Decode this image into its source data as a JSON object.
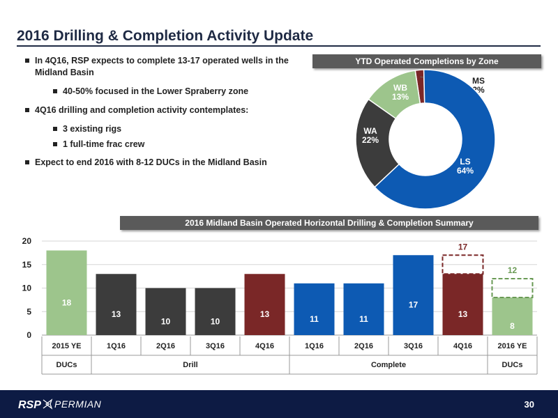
{
  "slide": {
    "title": "2016 Drilling & Completion Activity Update",
    "page_number": "30"
  },
  "bullets": [
    {
      "text": "In 4Q16, RSP expects to complete 13-17 operated wells in the Midland Basin",
      "level": 1
    },
    {
      "text": "40-50% focused in the Lower Spraberry zone",
      "level": 2
    },
    {
      "text": "4Q16 drilling and completion activity contemplates:",
      "level": 1
    },
    {
      "text": "3 existing rigs",
      "level": 2
    },
    {
      "text": "1 full-time frac crew",
      "level": 2
    },
    {
      "text": "Expect to end 2016 with 8-12 DUCs in the Midland Basin",
      "level": 1
    }
  ],
  "logo": {
    "text_left": "RSP",
    "text_right": "PERMIAN"
  },
  "chart_data": [
    {
      "type": "pie",
      "title": "YTD Operated Completions by Zone",
      "slices": [
        {
          "label": "LS",
          "pct_label": "64%",
          "value": 64,
          "color": "#0d5ab3"
        },
        {
          "label": "WA",
          "pct_label": "22%",
          "value": 22,
          "color": "#3c3c3c"
        },
        {
          "label": "WB",
          "pct_label": "13%",
          "value": 13,
          "color": "#9dc58c"
        },
        {
          "label": "MS",
          "pct_label": "2%",
          "value": 2,
          "color": "#7a2727"
        }
      ]
    },
    {
      "type": "bar",
      "title": "2016 Midland Basin Operated Horizontal Drilling & Completion Summary",
      "categories": [
        "2015 YE",
        "1Q16",
        "2Q16",
        "3Q16",
        "4Q16",
        "1Q16",
        "2Q16",
        "3Q16",
        "4Q16",
        "2016 YE"
      ],
      "values": [
        18,
        13,
        10,
        10,
        13,
        11,
        11,
        17,
        13,
        8
      ],
      "colors": [
        "#9dc58c",
        "#3c3c3c",
        "#3c3c3c",
        "#3c3c3c",
        "#7a2727",
        "#0d5ab3",
        "#0d5ab3",
        "#0d5ab3",
        "#7a2727",
        "#9dc58c"
      ],
      "groups": [
        {
          "label": "DUCs",
          "from": 0,
          "to": 0
        },
        {
          "label": "Drill",
          "from": 1,
          "to": 4
        },
        {
          "label": "Complete",
          "from": 5,
          "to": 8
        },
        {
          "label": "DUCs",
          "from": 9,
          "to": 9
        }
      ],
      "ranges": [
        {
          "index": 8,
          "high": 17,
          "label": "17",
          "color": "#7a2727"
        },
        {
          "index": 9,
          "high": 12,
          "label": "12",
          "color": "#6a9a55"
        }
      ],
      "yticks": [
        0,
        5,
        10,
        15,
        20
      ],
      "ylim": [
        0,
        20
      ],
      "grid": true
    }
  ]
}
